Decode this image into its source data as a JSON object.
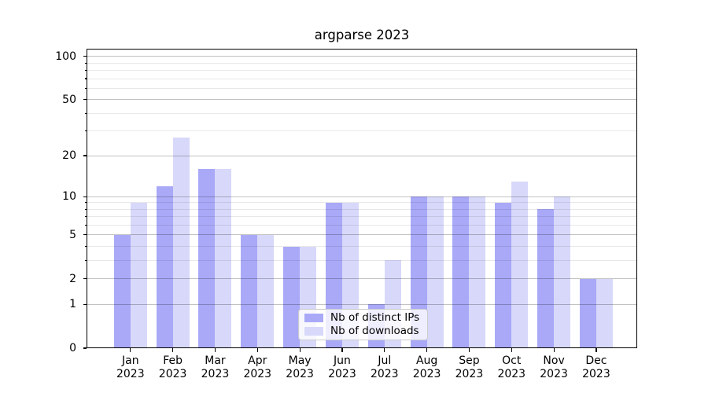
{
  "title": "argparse 2023",
  "chart_data": {
    "type": "bar",
    "title": "argparse 2023",
    "categories": [
      "Jan",
      "Feb",
      "Mar",
      "Apr",
      "May",
      "Jun",
      "Jul",
      "Aug",
      "Sep",
      "Oct",
      "Nov",
      "Dec"
    ],
    "category_year": "2023",
    "series": [
      {
        "name": "Nb of distinct IPs",
        "color": "#a9a9f8",
        "values": [
          5,
          12,
          16,
          5,
          4,
          9,
          1,
          10,
          10,
          9,
          8,
          2
        ]
      },
      {
        "name": "Nb of downloads",
        "color": "#d8d8fa",
        "values": [
          9,
          27,
          16,
          5,
          4,
          9,
          3,
          10,
          10,
          13,
          10,
          2
        ]
      }
    ],
    "yscale": "log1p",
    "ylim": [
      0,
      113
    ],
    "yticks": [
      0,
      1,
      2,
      5,
      10,
      20,
      50,
      100
    ],
    "yticks_minor": [
      3,
      4,
      6,
      7,
      8,
      9,
      30,
      40,
      60,
      70,
      80,
      90
    ],
    "grid": true,
    "legend_position": "lower center",
    "axis_color": "#000000",
    "background_color": "#ffffff"
  }
}
